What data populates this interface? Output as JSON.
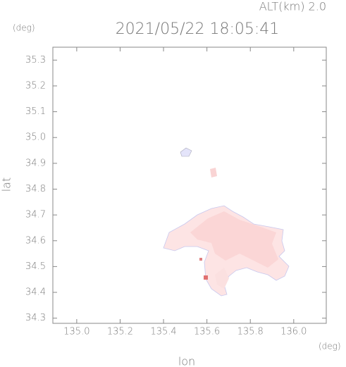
{
  "chart_data": {
    "type": "map",
    "title": "2021/05/22 18:05:41",
    "subtitle": "ALT(km) 2.0",
    "x_label": "lon",
    "y_label": "lat",
    "x_unit": "(deg)",
    "y_unit": "(deg)",
    "xlim": [
      134.89,
      136.15
    ],
    "ylim": [
      34.28,
      35.35
    ],
    "xticks": [
      {
        "value": 135,
        "label": "135.0"
      },
      135.2,
      135.4,
      135.6,
      135.8,
      {
        "value": 136,
        "label": "136.0"
      }
    ],
    "yticks": [
      34.3,
      34.4,
      34.5,
      34.6,
      34.7,
      34.8,
      34.9,
      {
        "value": 35,
        "label": "35.0"
      },
      35.1,
      35.2,
      35.3
    ]
  }
}
